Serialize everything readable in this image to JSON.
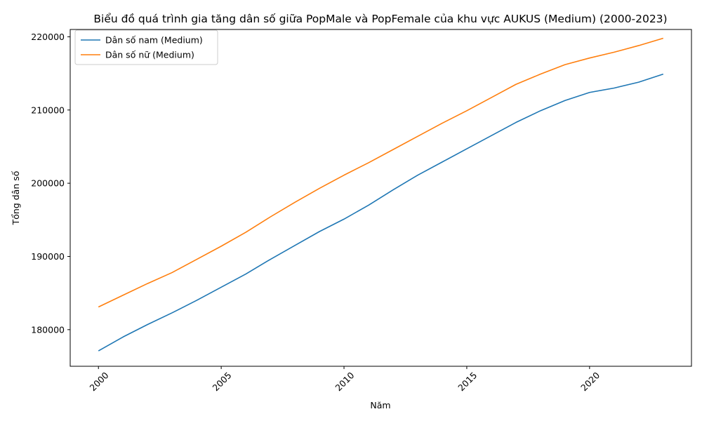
{
  "chart_data": {
    "type": "line",
    "title": "Biểu đồ quá trình gia tăng dân số giữa PopMale và PopFemale của khu vực AUKUS (Medium) (2000-2023)",
    "xlabel": "Năm",
    "ylabel": "Tổng dân số",
    "xlim": [
      1998.85,
      2024.15
    ],
    "ylim": [
      175000,
      221000
    ],
    "x_ticks": [
      2000,
      2005,
      2010,
      2015,
      2020
    ],
    "y_ticks": [
      180000,
      190000,
      200000,
      210000,
      220000
    ],
    "legend_position": "upper-left",
    "grid": false,
    "x": [
      2000,
      2001,
      2002,
      2003,
      2004,
      2005,
      2006,
      2007,
      2008,
      2009,
      2010,
      2011,
      2012,
      2013,
      2014,
      2015,
      2016,
      2017,
      2018,
      2019,
      2020,
      2021,
      2022,
      2023
    ],
    "series": [
      {
        "name": "Dân số nam (Medium)",
        "color": "#1f77b4",
        "values": [
          177100,
          179000,
          180700,
          182300,
          184000,
          185800,
          187600,
          189600,
          191500,
          193400,
          195100,
          197000,
          199100,
          201100,
          202900,
          204700,
          206500,
          208300,
          209900,
          211300,
          212400,
          213000,
          213800,
          214900
        ]
      },
      {
        "name": "Dân số nữ (Medium)",
        "color": "#ff7f0e",
        "values": [
          183100,
          184700,
          186300,
          187800,
          189600,
          191400,
          193300,
          195400,
          197400,
          199300,
          201100,
          202800,
          204600,
          206400,
          208200,
          209900,
          211700,
          213500,
          214900,
          216200,
          217100,
          217900,
          218800,
          219800
        ]
      }
    ]
  }
}
